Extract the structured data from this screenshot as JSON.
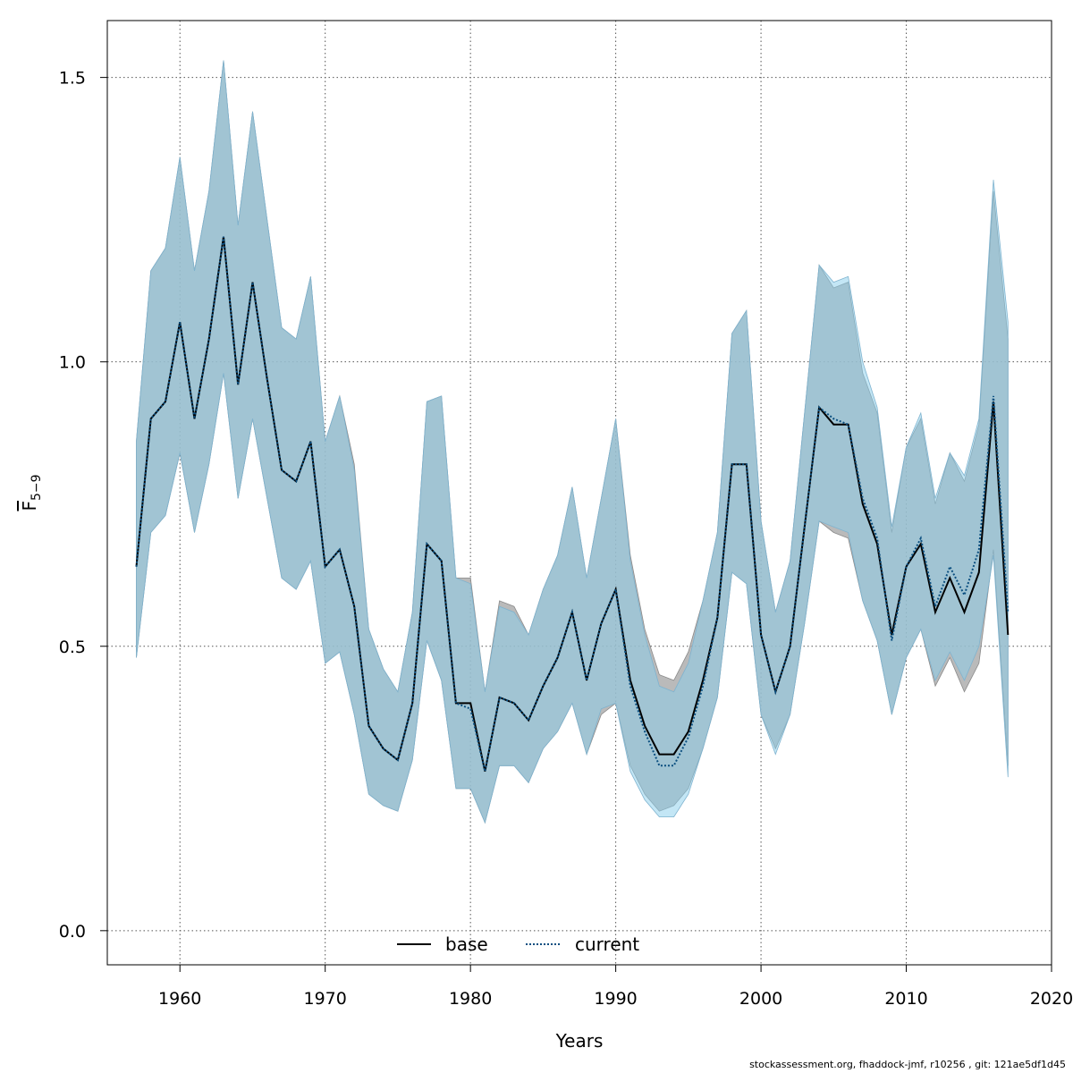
{
  "chart_data": {
    "type": "area",
    "xlabel": "Years",
    "ylabel_main": "F",
    "ylabel_sub": "5−9",
    "xlim": [
      1955,
      2020
    ],
    "ylim": [
      -0.06,
      1.6
    ],
    "x_ticks": [
      1960,
      1970,
      1980,
      1990,
      2000,
      2010,
      2020
    ],
    "y_ticks": [
      0.0,
      0.5,
      1.0,
      1.5
    ],
    "y_tick_labels": [
      "0.0",
      "0.5",
      "1.0",
      "1.5"
    ],
    "grid": true,
    "legend_position": "bottom-center",
    "years": [
      1957,
      1958,
      1959,
      1960,
      1961,
      1962,
      1963,
      1964,
      1965,
      1966,
      1967,
      1968,
      1969,
      1970,
      1971,
      1972,
      1973,
      1974,
      1975,
      1976,
      1977,
      1978,
      1979,
      1980,
      1981,
      1982,
      1983,
      1984,
      1985,
      1986,
      1987,
      1988,
      1989,
      1990,
      1991,
      1992,
      1993,
      1994,
      1995,
      1996,
      1997,
      1998,
      1999,
      2000,
      2001,
      2002,
      2003,
      2004,
      2005,
      2006,
      2007,
      2008,
      2009,
      2010,
      2011,
      2012,
      2013,
      2014,
      2015,
      2016,
      2017
    ],
    "series": [
      {
        "name": "base",
        "line_color": "#000000",
        "line_style": "solid",
        "band_color": "#a9a9a9",
        "values": [
          0.64,
          0.9,
          0.93,
          1.07,
          0.9,
          1.04,
          1.22,
          0.96,
          1.14,
          0.97,
          0.81,
          0.79,
          0.86,
          0.64,
          0.67,
          0.57,
          0.36,
          0.32,
          0.3,
          0.4,
          0.68,
          0.65,
          0.4,
          0.4,
          0.28,
          0.41,
          0.4,
          0.37,
          0.43,
          0.48,
          0.56,
          0.44,
          0.54,
          0.6,
          0.44,
          0.36,
          0.31,
          0.31,
          0.35,
          0.44,
          0.55,
          0.82,
          0.82,
          0.52,
          0.42,
          0.5,
          0.71,
          0.92,
          0.89,
          0.89,
          0.75,
          0.68,
          0.52,
          0.64,
          0.68,
          0.56,
          0.62,
          0.56,
          0.63,
          0.93,
          0.52
        ],
        "lower": [
          0.48,
          0.7,
          0.73,
          0.84,
          0.7,
          0.82,
          0.98,
          0.76,
          0.9,
          0.76,
          0.62,
          0.6,
          0.65,
          0.47,
          0.49,
          0.38,
          0.24,
          0.22,
          0.21,
          0.3,
          0.51,
          0.44,
          0.25,
          0.25,
          0.19,
          0.29,
          0.29,
          0.26,
          0.32,
          0.35,
          0.4,
          0.31,
          0.38,
          0.4,
          0.29,
          0.24,
          0.21,
          0.22,
          0.25,
          0.32,
          0.41,
          0.63,
          0.61,
          0.38,
          0.32,
          0.38,
          0.54,
          0.72,
          0.7,
          0.69,
          0.58,
          0.51,
          0.38,
          0.48,
          0.53,
          0.43,
          0.48,
          0.42,
          0.47,
          0.67,
          0.29
        ],
        "upper": [
          0.86,
          1.16,
          1.2,
          1.36,
          1.16,
          1.3,
          1.53,
          1.24,
          1.44,
          1.25,
          1.06,
          1.04,
          1.15,
          0.86,
          0.94,
          0.82,
          0.53,
          0.46,
          0.42,
          0.56,
          0.93,
          0.94,
          0.62,
          0.62,
          0.42,
          0.58,
          0.57,
          0.52,
          0.6,
          0.66,
          0.78,
          0.62,
          0.76,
          0.9,
          0.66,
          0.53,
          0.45,
          0.44,
          0.49,
          0.58,
          0.7,
          1.05,
          1.09,
          0.72,
          0.56,
          0.65,
          0.91,
          1.17,
          1.13,
          1.14,
          0.98,
          0.91,
          0.7,
          0.85,
          0.9,
          0.75,
          0.84,
          0.79,
          0.89,
          1.3,
          1.04
        ]
      },
      {
        "name": "current",
        "line_color": "#0b4f80",
        "line_style": "dotted",
        "band_color": "#87ceeb",
        "values": [
          0.64,
          0.9,
          0.93,
          1.07,
          0.9,
          1.04,
          1.22,
          0.96,
          1.14,
          0.97,
          0.81,
          0.79,
          0.86,
          0.64,
          0.67,
          0.57,
          0.36,
          0.32,
          0.3,
          0.4,
          0.68,
          0.65,
          0.4,
          0.39,
          0.28,
          0.41,
          0.4,
          0.37,
          0.43,
          0.48,
          0.56,
          0.44,
          0.54,
          0.6,
          0.43,
          0.35,
          0.29,
          0.29,
          0.34,
          0.43,
          0.55,
          0.82,
          0.82,
          0.52,
          0.42,
          0.5,
          0.71,
          0.92,
          0.9,
          0.89,
          0.76,
          0.69,
          0.51,
          0.64,
          0.69,
          0.57,
          0.64,
          0.59,
          0.67,
          0.94,
          0.56
        ],
        "lower": [
          0.48,
          0.7,
          0.73,
          0.84,
          0.7,
          0.82,
          0.98,
          0.76,
          0.9,
          0.76,
          0.62,
          0.6,
          0.65,
          0.47,
          0.49,
          0.38,
          0.24,
          0.22,
          0.21,
          0.3,
          0.51,
          0.44,
          0.25,
          0.25,
          0.19,
          0.29,
          0.29,
          0.26,
          0.32,
          0.35,
          0.4,
          0.31,
          0.39,
          0.4,
          0.28,
          0.23,
          0.2,
          0.2,
          0.24,
          0.32,
          0.41,
          0.63,
          0.61,
          0.38,
          0.31,
          0.38,
          0.54,
          0.72,
          0.71,
          0.7,
          0.58,
          0.51,
          0.38,
          0.48,
          0.53,
          0.44,
          0.49,
          0.44,
          0.5,
          0.66,
          0.27
        ],
        "upper": [
          0.86,
          1.16,
          1.2,
          1.36,
          1.16,
          1.3,
          1.53,
          1.24,
          1.44,
          1.25,
          1.06,
          1.04,
          1.15,
          0.86,
          0.94,
          0.81,
          0.53,
          0.46,
          0.42,
          0.56,
          0.93,
          0.94,
          0.62,
          0.61,
          0.42,
          0.57,
          0.56,
          0.52,
          0.6,
          0.66,
          0.78,
          0.62,
          0.76,
          0.9,
          0.65,
          0.52,
          0.43,
          0.42,
          0.47,
          0.58,
          0.7,
          1.05,
          1.09,
          0.72,
          0.56,
          0.65,
          0.91,
          1.17,
          1.14,
          1.15,
          1.0,
          0.92,
          0.71,
          0.85,
          0.91,
          0.76,
          0.84,
          0.8,
          0.9,
          1.32,
          1.07
        ]
      }
    ]
  },
  "footer_text": "stockassessment.org, fhaddock-jmf, r10256 , git: 121ae5df1d45"
}
